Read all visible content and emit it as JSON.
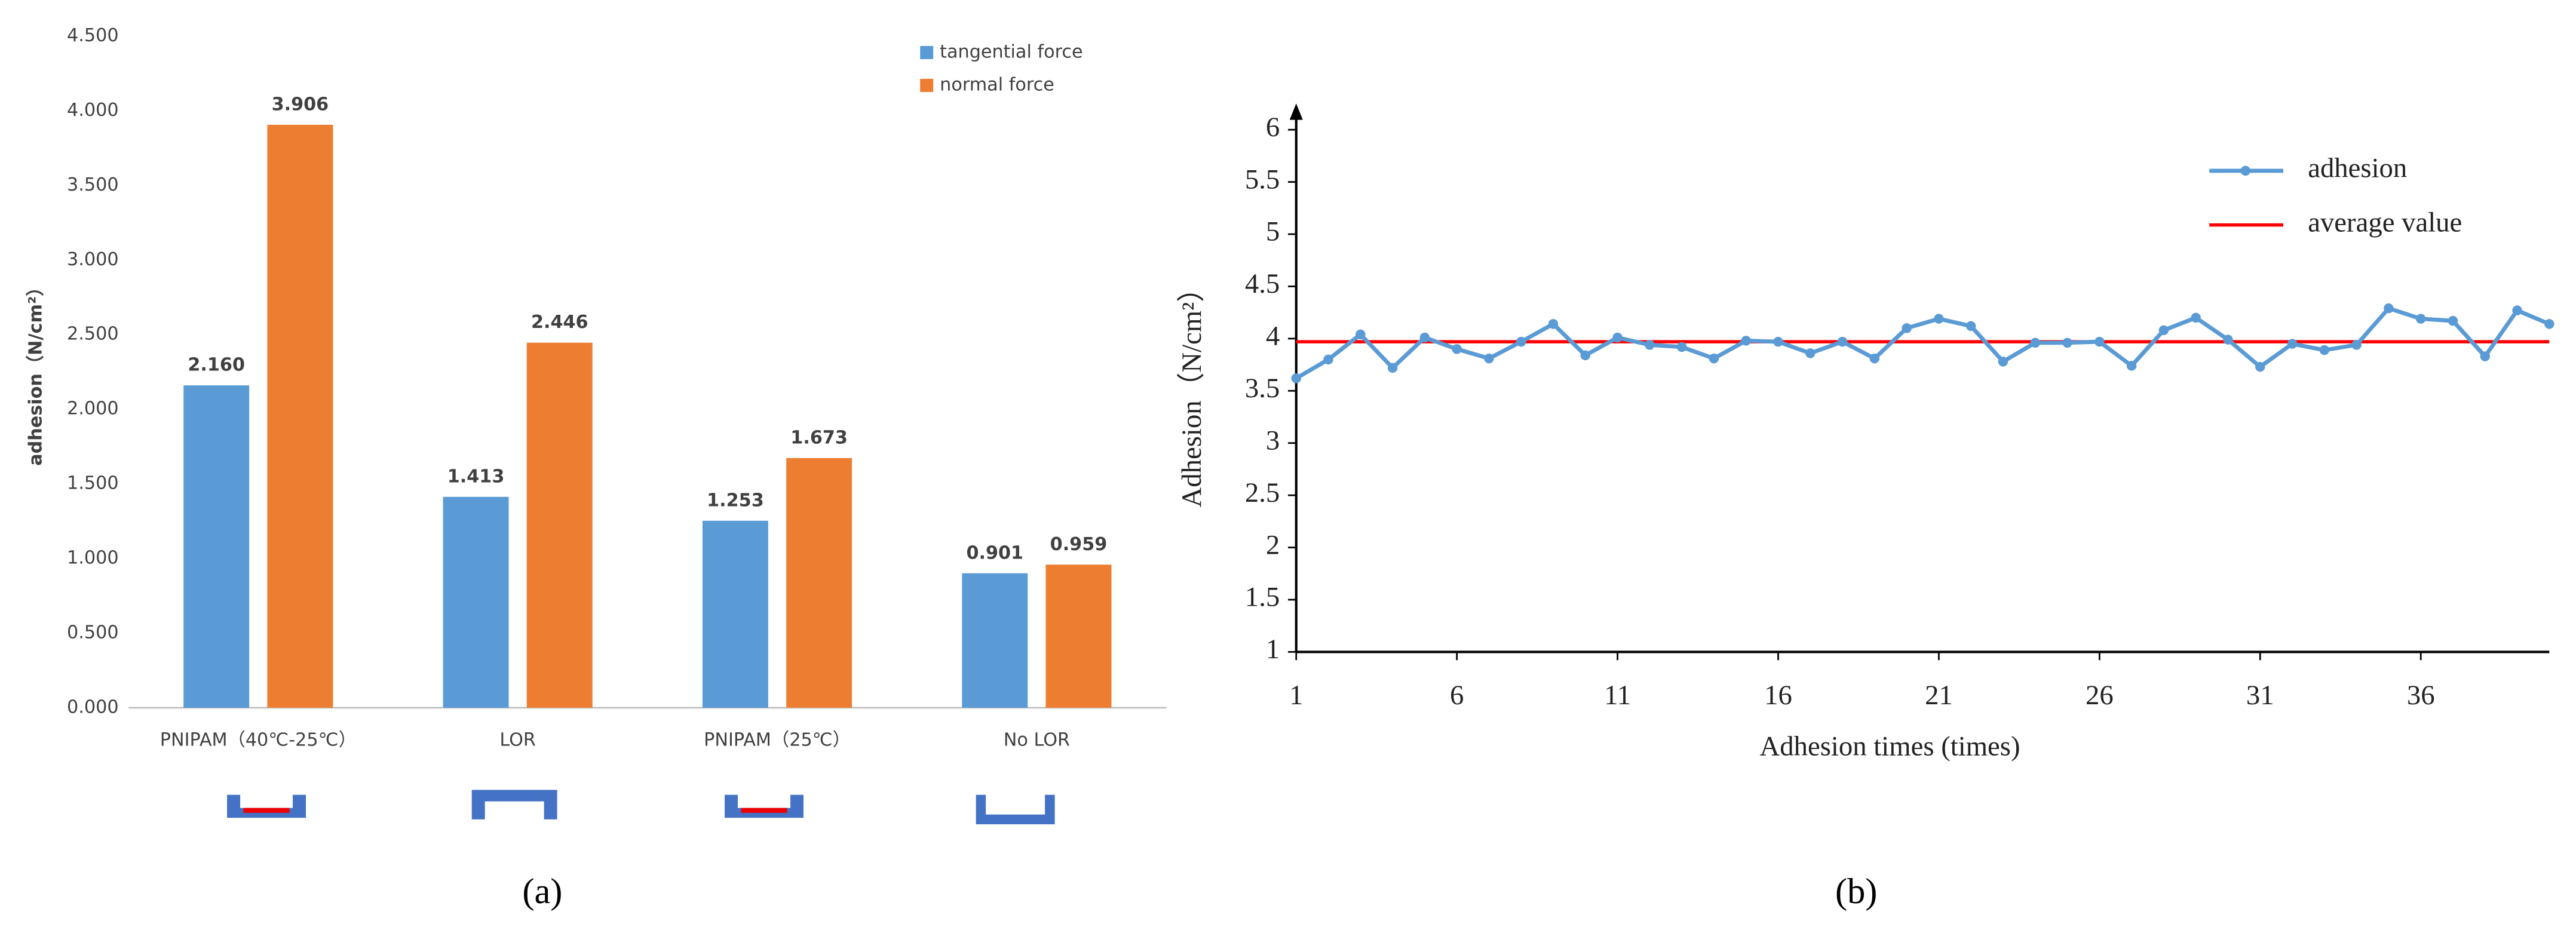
{
  "chart_data": [
    {
      "type": "bar",
      "caption": "(a)",
      "ylabel": "adhesion（N/cm²）",
      "categories": [
        "PNIPAM（40℃-25℃）",
        "LOR",
        "PNIPAM（25℃）",
        "No LOR"
      ],
      "series": [
        {
          "name": "tangential force",
          "color": "#5b9bd5",
          "values": [
            2.16,
            1.413,
            1.253,
            0.901
          ],
          "value_labels": [
            "2.160",
            "1.413",
            "1.253",
            "0.901"
          ]
        },
        {
          "name": "normal force",
          "color": "#ed7d31",
          "values": [
            3.906,
            2.446,
            1.673,
            0.959
          ],
          "value_labels": [
            "3.906",
            "2.446",
            "1.673",
            "0.959"
          ]
        }
      ],
      "ylim": [
        0,
        4.5
      ],
      "yticks": [
        {
          "value": 0,
          "label": "0.000"
        },
        {
          "value": 0.5,
          "label": "0.500"
        },
        {
          "value": 1,
          "label": "1.000"
        },
        {
          "value": 1.5,
          "label": "1.500"
        },
        {
          "value": 2,
          "label": "2.000"
        },
        {
          "value": 2.5,
          "label": "2.500"
        },
        {
          "value": 3,
          "label": "3.000"
        },
        {
          "value": 3.5,
          "label": "3.500"
        },
        {
          "value": 4,
          "label": "4.000"
        },
        {
          "value": 4.5,
          "label": "4.500"
        }
      ],
      "legend": "top-right",
      "grid": false
    },
    {
      "type": "line",
      "caption": "(b)",
      "xlabel": "Adhesion times (times)",
      "ylabel": "Adhesion（N/cm²）",
      "x": [
        1,
        2,
        3,
        4,
        5,
        6,
        7,
        8,
        9,
        10,
        11,
        12,
        13,
        14,
        15,
        16,
        17,
        18,
        19,
        20,
        21,
        22,
        23,
        24,
        25,
        26,
        27,
        28,
        29,
        30,
        31,
        32,
        33,
        34,
        35,
        36,
        37,
        38,
        39,
        40
      ],
      "series": [
        {
          "name": "adhesion",
          "color": "#5b9bd5",
          "values": [
            3.62,
            3.8,
            4.04,
            3.72,
            4.01,
            3.9,
            3.81,
            3.97,
            4.14,
            3.84,
            4.01,
            3.94,
            3.92,
            3.81,
            3.98,
            3.97,
            3.86,
            3.97,
            3.81,
            4.1,
            4.19,
            4.12,
            3.78,
            3.96,
            3.96,
            3.97,
            3.74,
            4.08,
            4.2,
            3.99,
            3.73,
            3.95,
            3.89,
            3.94,
            4.29,
            4.19,
            4.17,
            3.83,
            4.27,
            4.14
          ]
        }
      ],
      "reference_lines": [
        {
          "name": "average value",
          "color": "#ff0000",
          "value": 3.97
        }
      ],
      "xlim": [
        1,
        40
      ],
      "xticks": [
        1,
        6,
        11,
        16,
        21,
        26,
        31,
        36
      ],
      "ylim": [
        1,
        6
      ],
      "yticks": [
        1,
        1.5,
        2,
        2.5,
        3,
        3.5,
        4,
        4.5,
        5,
        5.5,
        6
      ],
      "legend": "top-right",
      "grid": false
    }
  ]
}
